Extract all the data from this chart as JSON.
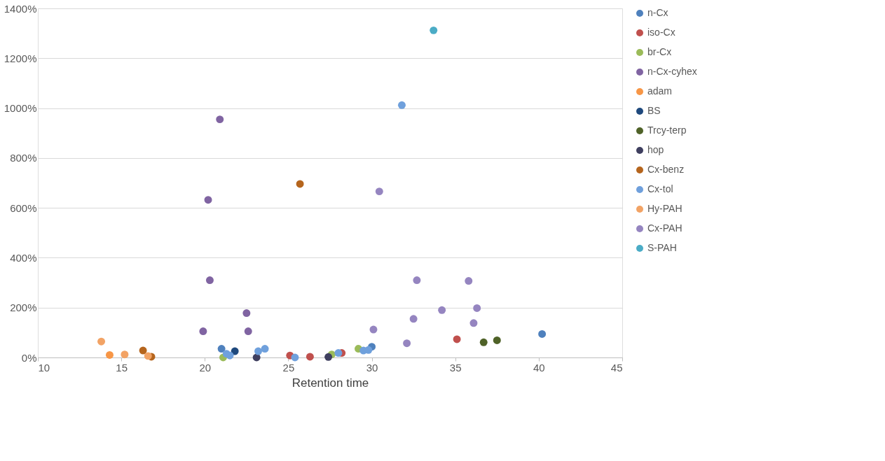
{
  "chart_data": {
    "type": "scatter",
    "xlabel": "Retention time",
    "xlim": [
      10,
      45
    ],
    "xticks": [
      10,
      15,
      20,
      25,
      30,
      35,
      40,
      45
    ],
    "ylim": [
      0,
      1400
    ],
    "yticks": [
      {
        "value": 0,
        "label": "0%"
      },
      {
        "value": 200,
        "label": "200%"
      },
      {
        "value": 400,
        "label": "400%"
      },
      {
        "value": 600,
        "label": "600%"
      },
      {
        "value": 800,
        "label": "800%"
      },
      {
        "value": 1000,
        "label": "1000%"
      },
      {
        "value": 1200,
        "label": "1200%"
      },
      {
        "value": 1400,
        "label": "1400%"
      }
    ],
    "grid": "y",
    "legend": "right",
    "marker": "circle",
    "series": [
      {
        "name": "n-Cx",
        "color": "#4f81bd",
        "x": [
          21.0,
          30.0,
          40.2
        ],
        "values": [
          35,
          43,
          94
        ]
      },
      {
        "name": "iso-Cx",
        "color": "#c0504d",
        "x": [
          25.1,
          26.3,
          28.2,
          35.1
        ],
        "values": [
          8,
          3,
          18,
          73
        ]
      },
      {
        "name": "br-Cx",
        "color": "#9bbb59",
        "x": [
          21.1,
          27.6,
          29.2
        ],
        "values": [
          0,
          12,
          35
        ]
      },
      {
        "name": "n-Cx-cyhex",
        "color": "#8064a2",
        "x": [
          19.9,
          20.2,
          20.3,
          20.9,
          22.5,
          22.6
        ],
        "values": [
          105,
          632,
          310,
          955,
          178,
          105
        ]
      },
      {
        "name": "adam",
        "color": "#f79646",
        "x": [
          14.3
        ],
        "values": [
          10
        ]
      },
      {
        "name": "BS",
        "color": "#1f497d",
        "x": [
          21.8
        ],
        "values": [
          25
        ]
      },
      {
        "name": "Trcy-terp",
        "color": "#4f6228",
        "x": [
          36.7,
          37.5
        ],
        "values": [
          61,
          69
        ]
      },
      {
        "name": "hop",
        "color": "#3f3f5f",
        "x": [
          23.1,
          27.4
        ],
        "values": [
          0,
          2
        ]
      },
      {
        "name": "Cx-benz",
        "color": "#b5651d",
        "x": [
          16.3,
          16.8,
          25.7
        ],
        "values": [
          28,
          3,
          696
        ]
      },
      {
        "name": "Cx-tol",
        "color": "#6fa0dc",
        "x": [
          21.3,
          21.5,
          23.2,
          23.6,
          25.4,
          28.0,
          29.5,
          29.8,
          31.8
        ],
        "values": [
          15,
          8,
          25,
          35,
          0,
          18,
          28,
          30,
          1012
        ]
      },
      {
        "name": "Hy-PAH",
        "color": "#f2a365",
        "x": [
          13.8,
          15.2,
          16.6
        ],
        "values": [
          64,
          12,
          6
        ]
      },
      {
        "name": "Cx-PAH",
        "color": "#9585c0",
        "x": [
          30.1,
          30.45,
          32.1,
          32.5,
          32.7,
          34.2,
          35.8,
          36.1,
          36.3
        ],
        "values": [
          112,
          666,
          57,
          155,
          310,
          190,
          307,
          138,
          198
        ]
      },
      {
        "name": "S-PAH",
        "color": "#4bacc6",
        "x": [
          33.7
        ],
        "values": [
          1312
        ]
      }
    ]
  }
}
